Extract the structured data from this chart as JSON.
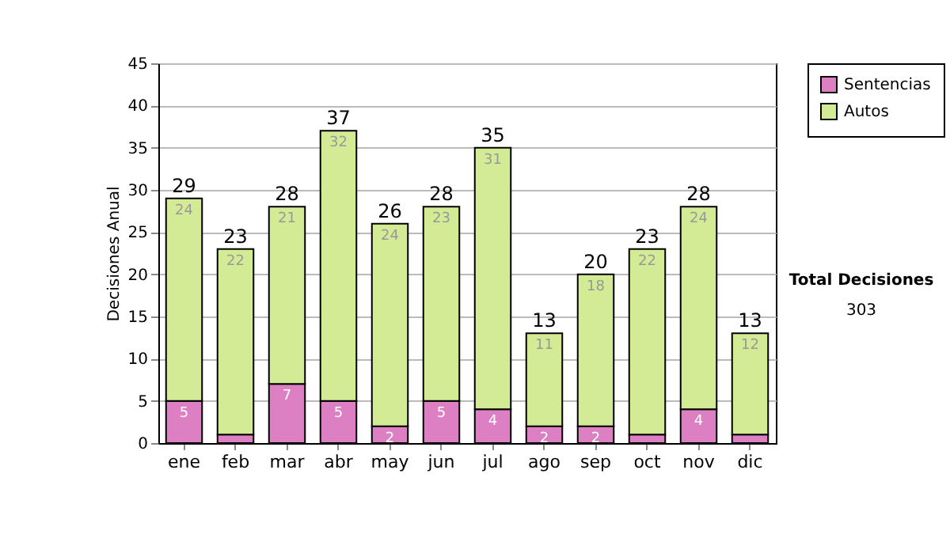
{
  "chart_data": {
    "type": "bar",
    "stacked": true,
    "ylabel": "Decisiones Anual",
    "categories": [
      "ene",
      "feb",
      "mar",
      "abr",
      "may",
      "jun",
      "jul",
      "ago",
      "sep",
      "oct",
      "nov",
      "dic"
    ],
    "series": [
      {
        "name": "Sentencias",
        "color": "#dd7fc3",
        "values": [
          5,
          1,
          7,
          5,
          2,
          5,
          4,
          2,
          2,
          1,
          4,
          1
        ],
        "value_labels": [
          "5",
          null,
          "7",
          "5",
          "2",
          "5",
          "4",
          "2",
          "2",
          null,
          "4",
          null
        ]
      },
      {
        "name": "Autos",
        "color": "#d4eb96",
        "values": [
          24,
          22,
          21,
          32,
          24,
          23,
          31,
          11,
          18,
          22,
          24,
          12
        ],
        "value_labels": [
          "24",
          "22",
          "21",
          "32",
          "24",
          "23",
          "31",
          "11",
          "18",
          "22",
          "24",
          "12"
        ]
      }
    ],
    "totals": [
      "29",
      "23",
      "28",
      "37",
      "26",
      "28",
      "35",
      "13",
      "20",
      "23",
      "28",
      "13"
    ],
    "ylim": [
      0,
      45
    ],
    "yticks": [
      0,
      5,
      10,
      15,
      20,
      25,
      30,
      35,
      40,
      45
    ],
    "grid": "y",
    "legend": "right",
    "annotations": [
      "Total Decisiones",
      "303"
    ]
  }
}
